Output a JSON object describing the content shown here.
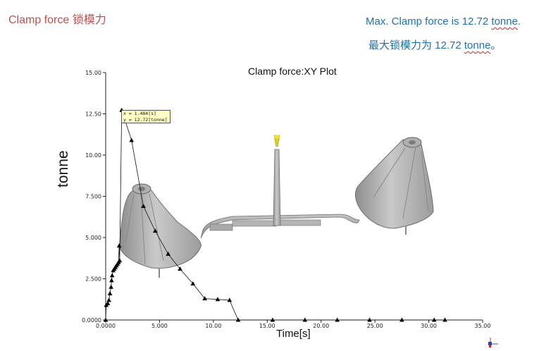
{
  "slide": {
    "title": "Clamp force  锁模力",
    "note_en_prefix": "Max. Clamp force is 12.72 ",
    "note_en_unit": "tonne",
    "note_en_suffix": ".",
    "note_cn_prefix": "最大锁模力为 12.72 ",
    "note_cn_unit": "tonne",
    "note_cn_suffix": "。"
  },
  "tooltip": {
    "line1": "x = 1.484[s]",
    "line2": "y = 12.72[tonne]"
  },
  "chart_data": {
    "type": "line",
    "title": "Clamp force:XY Plot",
    "xlabel": "Time[s]",
    "ylabel": "tonne",
    "xlim": [
      0,
      35
    ],
    "ylim": [
      0,
      15
    ],
    "x_ticks": [
      "0.0000",
      "5.000",
      "10.00",
      "15.00",
      "20.00",
      "25.00",
      "30.00",
      "35.00"
    ],
    "y_ticks": [
      "0.0000",
      "2.500",
      "5.000",
      "7.500",
      "10.00",
      "12.50",
      "15.00"
    ],
    "marker": "triangle",
    "series": [
      {
        "x": [
          0.0,
          0.05,
          0.2,
          0.3,
          0.4,
          0.5,
          0.55,
          0.6,
          0.7,
          0.8,
          0.9,
          1.0,
          1.1,
          1.2,
          1.25,
          1.3,
          1.484,
          2.4,
          3.5,
          4.6,
          5.8,
          6.9,
          8.1,
          9.2,
          10.4,
          11.5,
          12.3,
          15.5,
          18.5,
          21.5,
          24.5,
          27.5,
          30.5,
          31.5
        ],
        "y": [
          0.0,
          0.9,
          1.0,
          1.2,
          1.6,
          2.0,
          2.4,
          2.7,
          3.0,
          3.1,
          3.2,
          3.3,
          3.4,
          3.5,
          4.5,
          3.6,
          12.72,
          10.9,
          6.9,
          5.4,
          4.0,
          3.1,
          2.2,
          1.3,
          1.25,
          1.2,
          0.0,
          0.0,
          0.0,
          0.0,
          0.0,
          0.0,
          0.0,
          0.0
        ]
      }
    ]
  }
}
